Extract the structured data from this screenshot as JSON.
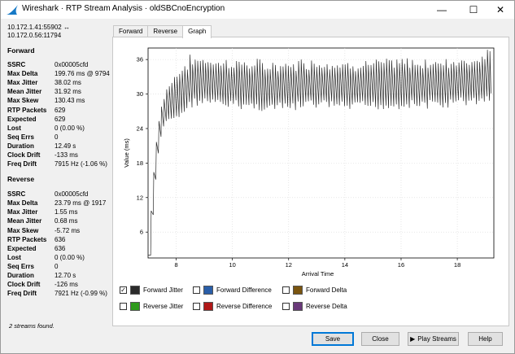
{
  "window": {
    "title": "Wireshark · RTP Stream Analysis · oldSBCnoEncryption",
    "controls": [
      "—",
      "☐",
      "✕"
    ]
  },
  "connection": {
    "line1": "10.172.1.41:55902 ↔",
    "line2": "10.172.0.56:11794"
  },
  "forward": {
    "heading": "Forward",
    "stats": [
      {
        "label": "SSRC",
        "value": "0x00005cfd"
      },
      {
        "label": "Max Delta",
        "value": "199.76 ms @ 9794"
      },
      {
        "label": "Max Jitter",
        "value": "38.02 ms"
      },
      {
        "label": "Mean Jitter",
        "value": "31.92 ms"
      },
      {
        "label": "Max Skew",
        "value": "130.43 ms"
      },
      {
        "label": "RTP Packets",
        "value": "629"
      },
      {
        "label": "Expected",
        "value": "629"
      },
      {
        "label": "Lost",
        "value": "0 (0.00 %)"
      },
      {
        "label": "Seq Errs",
        "value": "0"
      },
      {
        "label": "Duration",
        "value": "12.49 s"
      },
      {
        "label": "Clock Drift",
        "value": "-133 ms"
      },
      {
        "label": "Freq Drift",
        "value": "7915 Hz (-1.06 %)"
      }
    ]
  },
  "reverse": {
    "heading": "Reverse",
    "stats": [
      {
        "label": "SSRC",
        "value": "0x00005cfd"
      },
      {
        "label": "Max Delta",
        "value": "23.79 ms @ 1917"
      },
      {
        "label": "Max Jitter",
        "value": "1.55 ms"
      },
      {
        "label": "Mean Jitter",
        "value": "0.68 ms"
      },
      {
        "label": "Max Skew",
        "value": "-5.72 ms"
      },
      {
        "label": "RTP Packets",
        "value": "636"
      },
      {
        "label": "Expected",
        "value": "636"
      },
      {
        "label": "Lost",
        "value": "0 (0.00 %)"
      },
      {
        "label": "Seq Errs",
        "value": "0"
      },
      {
        "label": "Duration",
        "value": "12.70 s"
      },
      {
        "label": "Clock Drift",
        "value": "-126 ms"
      },
      {
        "label": "Freq Drift",
        "value": "7921 Hz (-0.99 %)"
      }
    ]
  },
  "status_text": "2 streams found.",
  "tabs": [
    "Forward",
    "Reverse",
    "Graph"
  ],
  "active_tab": "Graph",
  "legend": [
    {
      "label": "Forward Jitter",
      "checked": true,
      "color": "#2b2b2b"
    },
    {
      "label": "Forward Difference",
      "checked": false,
      "color": "#2a5ea8"
    },
    {
      "label": "Forward Delta",
      "checked": false,
      "color": "#7a5510"
    },
    {
      "label": "Reverse Jitter",
      "checked": false,
      "color": "#2f9a1d"
    },
    {
      "label": "Reverse Difference",
      "checked": false,
      "color": "#b01818"
    },
    {
      "label": "Reverse Delta",
      "checked": false,
      "color": "#6a3a7a"
    }
  ],
  "buttons": {
    "save": "Save",
    "close": "Close",
    "play": "Play Streams",
    "help": "Help"
  },
  "icons": {
    "app": "wireshark-fin-icon",
    "play": "play-icon"
  },
  "chart_data": {
    "type": "line",
    "title": "",
    "xlabel": "Arrival Time",
    "ylabel": "Value (ms)",
    "xlim": [
      7,
      19.3
    ],
    "ylim": [
      1.5,
      38
    ],
    "xticks": [
      8,
      10,
      12,
      14,
      16,
      18
    ],
    "yticks": [
      6,
      12,
      18,
      24,
      30,
      36
    ],
    "grid": true,
    "series": [
      {
        "name": "Forward Jitter",
        "color": "#2b2b2b",
        "x": [
          7.0,
          7.1,
          7.2,
          7.3,
          7.4,
          7.5,
          7.6,
          7.7,
          7.8,
          7.9,
          8.0,
          8.1,
          8.2,
          8.4,
          8.6,
          8.8,
          9.0,
          9.5,
          10.0,
          10.5,
          11.0,
          11.5,
          12.0,
          12.5,
          13.0,
          13.5,
          14.0,
          14.5,
          15.0,
          15.5,
          16.0,
          16.5,
          17.0,
          17.5,
          18.0,
          18.5,
          19.0,
          19.2
        ],
        "y": [
          2.0,
          10.0,
          17.0,
          22.0,
          25.0,
          27.0,
          28.0,
          28.5,
          29.0,
          29.5,
          30.0,
          30.5,
          31.0,
          32.0,
          32.5,
          32.5,
          32.5,
          32.0,
          32.0,
          31.8,
          31.5,
          31.5,
          31.5,
          32.0,
          32.0,
          32.0,
          31.5,
          31.8,
          31.8,
          31.8,
          32.0,
          32.0,
          32.0,
          32.0,
          32.5,
          32.5,
          33.0,
          34.0
        ]
      }
    ]
  }
}
